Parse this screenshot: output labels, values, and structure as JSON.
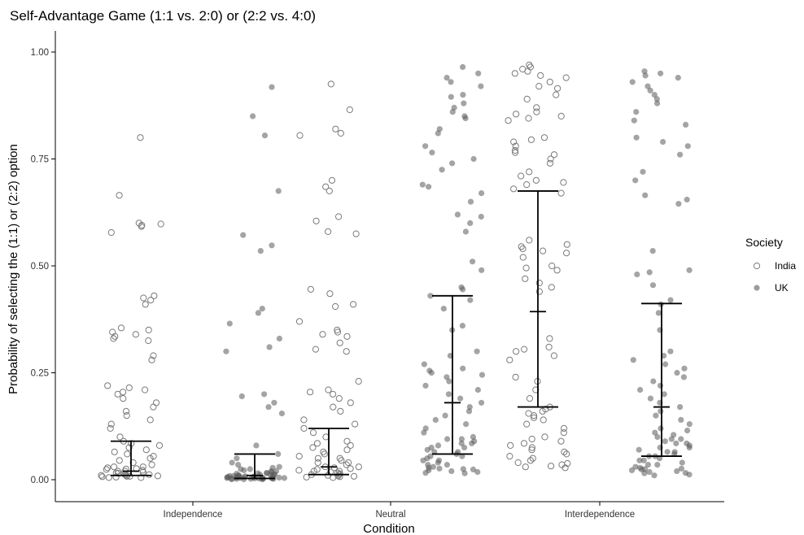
{
  "chart_data": {
    "type": "scatter",
    "title": "Self-Advantage Game (1:1 vs. 2:0) or (2:2 vs. 4:0)",
    "xlabel": "Condition",
    "ylabel": "Probability of selecting the (1:1) or (2:2) option",
    "categories": [
      "Independence",
      "Neutral",
      "Interdependence"
    ],
    "ylim": [
      0,
      1
    ],
    "yticks": [
      0,
      0.25,
      0.5,
      0.75,
      1
    ],
    "ytick_labels": [
      "0.00",
      "0.25",
      "0.50",
      "0.75",
      "1.00"
    ],
    "grid": false,
    "legend": {
      "title": "Society",
      "position": "right",
      "entries": [
        "India",
        "UK"
      ]
    },
    "colors": {
      "uk_fill": "#5a5a5a",
      "india_stroke": "#7a7a7a",
      "errorbar": "#000000"
    },
    "series": [
      {
        "name": "India",
        "marker": "open-circle",
        "groups": [
          {
            "condition": "Independence",
            "error_bar": {
              "lower": 0.01,
              "median": 0.02,
              "upper": 0.09
            },
            "points": [
              0.8,
              0.665,
              0.6,
              0.598,
              0.595,
              0.592,
              0.578,
              0.43,
              0.425,
              0.42,
              0.41,
              0.355,
              0.35,
              0.345,
              0.34,
              0.335,
              0.33,
              0.325,
              0.29,
              0.28,
              0.22,
              0.215,
              0.21,
              0.205,
              0.2,
              0.19,
              0.18,
              0.17,
              0.16,
              0.15,
              0.14,
              0.13,
              0.12,
              0.1,
              0.09,
              0.085,
              0.08,
              0.075,
              0.07,
              0.065,
              0.06,
              0.055,
              0.05,
              0.045,
              0.04,
              0.035,
              0.03,
              0.028,
              0.026,
              0.024,
              0.022,
              0.02,
              0.018,
              0.016,
              0.014,
              0.012,
              0.01,
              0.009,
              0.008,
              0.007,
              0.006,
              0.005,
              0.005,
              0.01,
              0.015,
              0.02,
              0.025,
              0.03,
              0.012,
              0.008
            ]
          },
          {
            "condition": "Neutral",
            "error_bar": {
              "lower": 0.012,
              "median": 0.03,
              "upper": 0.12
            },
            "points": [
              0.925,
              0.865,
              0.82,
              0.81,
              0.805,
              0.7,
              0.685,
              0.675,
              0.615,
              0.605,
              0.58,
              0.575,
              0.445,
              0.435,
              0.41,
              0.405,
              0.37,
              0.35,
              0.345,
              0.34,
              0.335,
              0.32,
              0.305,
              0.3,
              0.23,
              0.21,
              0.205,
              0.2,
              0.19,
              0.18,
              0.17,
              0.16,
              0.14,
              0.13,
              0.12,
              0.11,
              0.1,
              0.09,
              0.085,
              0.08,
              0.075,
              0.07,
              0.065,
              0.06,
              0.055,
              0.05,
              0.045,
              0.04,
              0.035,
              0.03,
              0.028,
              0.026,
              0.024,
              0.022,
              0.02,
              0.018,
              0.016,
              0.014,
              0.012,
              0.01,
              0.009,
              0.008,
              0.007,
              0.006,
              0.005,
              0.012,
              0.02,
              0.03,
              0.04,
              0.05
            ]
          },
          {
            "condition": "Interdependence",
            "error_bar": {
              "lower": 0.17,
              "median": 0.393,
              "upper": 0.675
            },
            "points": [
              0.97,
              0.965,
              0.96,
              0.955,
              0.95,
              0.945,
              0.94,
              0.93,
              0.92,
              0.915,
              0.9,
              0.89,
              0.87,
              0.86,
              0.855,
              0.85,
              0.845,
              0.84,
              0.8,
              0.795,
              0.79,
              0.78,
              0.77,
              0.765,
              0.76,
              0.75,
              0.74,
              0.72,
              0.71,
              0.7,
              0.695,
              0.69,
              0.68,
              0.67,
              0.56,
              0.55,
              0.545,
              0.54,
              0.535,
              0.53,
              0.52,
              0.5,
              0.495,
              0.49,
              0.47,
              0.46,
              0.45,
              0.44,
              0.33,
              0.31,
              0.305,
              0.3,
              0.29,
              0.28,
              0.24,
              0.23,
              0.21,
              0.19,
              0.17,
              0.165,
              0.16,
              0.155,
              0.15,
              0.145,
              0.14,
              0.13,
              0.12,
              0.11,
              0.1,
              0.095,
              0.09,
              0.085,
              0.08,
              0.075,
              0.07,
              0.065,
              0.06,
              0.055,
              0.05,
              0.045,
              0.04,
              0.035,
              0.03,
              0.028,
              0.032,
              0.038
            ]
          }
        ]
      },
      {
        "name": "UK",
        "marker": "filled-circle",
        "groups": [
          {
            "condition": "Independence",
            "error_bar": {
              "lower": 0.003,
              "median": 0.01,
              "upper": 0.06
            },
            "points": [
              0.918,
              0.85,
              0.805,
              0.675,
              0.572,
              0.548,
              0.535,
              0.4,
              0.39,
              0.365,
              0.33,
              0.31,
              0.3,
              0.2,
              0.195,
              0.18,
              0.17,
              0.155,
              0.08,
              0.06,
              0.05,
              0.04,
              0.035,
              0.03,
              0.028,
              0.025,
              0.022,
              0.02,
              0.018,
              0.016,
              0.015,
              0.014,
              0.013,
              0.012,
              0.011,
              0.01,
              0.009,
              0.009,
              0.008,
              0.008,
              0.007,
              0.007,
              0.006,
              0.006,
              0.005,
              0.005,
              0.005,
              0.004,
              0.004,
              0.004,
              0.003,
              0.003,
              0.003,
              0.002,
              0.002,
              0.002,
              0.002,
              0.001,
              0.001,
              0.001,
              0.012,
              0.015,
              0.02,
              0.025,
              0.006,
              0.004,
              0.003,
              0.008,
              0.01,
              0.002
            ]
          },
          {
            "condition": "Neutral",
            "error_bar": {
              "lower": 0.06,
              "median": 0.18,
              "upper": 0.43
            },
            "points": [
              0.965,
              0.95,
              0.94,
              0.93,
              0.92,
              0.9,
              0.895,
              0.88,
              0.87,
              0.86,
              0.85,
              0.845,
              0.82,
              0.81,
              0.78,
              0.765,
              0.75,
              0.74,
              0.725,
              0.69,
              0.685,
              0.67,
              0.65,
              0.62,
              0.615,
              0.6,
              0.58,
              0.51,
              0.49,
              0.45,
              0.445,
              0.43,
              0.42,
              0.4,
              0.36,
              0.35,
              0.3,
              0.29,
              0.27,
              0.26,
              0.255,
              0.25,
              0.245,
              0.24,
              0.23,
              0.22,
              0.21,
              0.2,
              0.19,
              0.18,
              0.17,
              0.16,
              0.15,
              0.14,
              0.13,
              0.12,
              0.11,
              0.1,
              0.095,
              0.09,
              0.085,
              0.08,
              0.075,
              0.07,
              0.065,
              0.06,
              0.055,
              0.05,
              0.045,
              0.04,
              0.035,
              0.03,
              0.028,
              0.026,
              0.024,
              0.022,
              0.02,
              0.018,
              0.016,
              0.015,
              0.025,
              0.035,
              0.045,
              0.055,
              0.065,
              0.075,
              0.085,
              0.095
            ]
          },
          {
            "condition": "Interdependence",
            "error_bar": {
              "lower": 0.055,
              "median": 0.17,
              "upper": 0.412
            },
            "points": [
              0.955,
              0.95,
              0.945,
              0.94,
              0.93,
              0.92,
              0.91,
              0.9,
              0.89,
              0.88,
              0.86,
              0.84,
              0.83,
              0.8,
              0.79,
              0.78,
              0.76,
              0.72,
              0.7,
              0.665,
              0.655,
              0.645,
              0.535,
              0.49,
              0.485,
              0.48,
              0.455,
              0.42,
              0.41,
              0.39,
              0.35,
              0.3,
              0.29,
              0.28,
              0.27,
              0.26,
              0.25,
              0.24,
              0.23,
              0.22,
              0.21,
              0.2,
              0.19,
              0.18,
              0.17,
              0.16,
              0.15,
              0.14,
              0.13,
              0.12,
              0.11,
              0.1,
              0.095,
              0.09,
              0.085,
              0.08,
              0.075,
              0.07,
              0.065,
              0.06,
              0.055,
              0.05,
              0.045,
              0.04,
              0.035,
              0.03,
              0.028,
              0.026,
              0.024,
              0.022,
              0.02,
              0.018,
              0.016,
              0.015,
              0.012,
              0.01,
              0.025,
              0.035,
              0.045,
              0.055,
              0.065,
              0.075,
              0.085,
              0.095,
              0.105,
              0.115
            ]
          }
        ]
      }
    ]
  }
}
